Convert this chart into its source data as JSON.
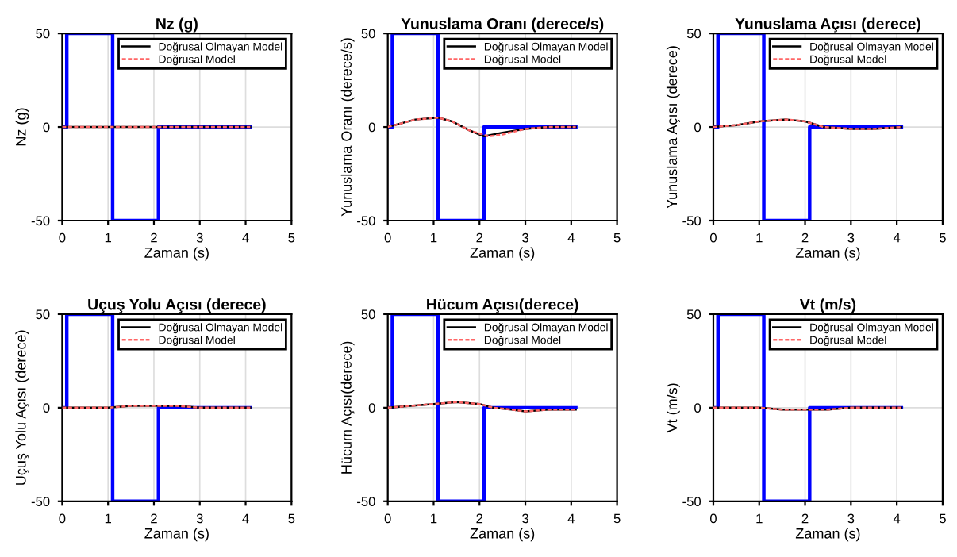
{
  "chart_data": [
    {
      "type": "line",
      "title": "Nz (g)",
      "xlabel": "Zaman (s)",
      "ylabel": "Nz (g)",
      "xlim": [
        0,
        5
      ],
      "ylim": [
        -50,
        50
      ],
      "xticks": [
        0,
        1,
        2,
        3,
        4,
        5
      ],
      "yticks": [
        -50,
        0,
        50
      ],
      "grid": true,
      "legend": "top right",
      "series": [
        {
          "name": "Doğrusal Olmayan Model",
          "color": "#000000",
          "line_style": "solid",
          "x": [
            0,
            1,
            2,
            3,
            4.1
          ],
          "values": [
            0,
            0,
            0,
            0,
            0
          ]
        },
        {
          "name": "Doğrusal Model",
          "color": "#ff6666",
          "line_style": "dashed",
          "x": [
            0,
            1,
            2,
            3,
            4.1
          ],
          "values": [
            0,
            0,
            0,
            0,
            0
          ]
        },
        {
          "color": "#0000ff",
          "line_style": "solid",
          "x": [
            0,
            0.1,
            0.1,
            1.1,
            1.1,
            2.1,
            2.1,
            4.1
          ],
          "values": [
            0,
            0,
            50,
            50,
            -50,
            -50,
            0,
            0
          ]
        }
      ]
    },
    {
      "type": "line",
      "title": "Yunuslama Oranı (derece/s)",
      "xlabel": "Zaman (s)",
      "ylabel": "Yunuslama Oranı (derece/s)",
      "xlim": [
        0,
        5
      ],
      "ylim": [
        -50,
        50
      ],
      "xticks": [
        0,
        1,
        2,
        3,
        4,
        5
      ],
      "yticks": [
        -50,
        0,
        50
      ],
      "grid": true,
      "legend": "top right",
      "series": [
        {
          "name": "Doğrusal Olmayan Model",
          "color": "#000000",
          "line_style": "solid",
          "x": [
            0,
            0.3,
            0.6,
            1.1,
            1.4,
            1.8,
            2.1,
            2.5,
            3,
            3.5,
            4.1
          ],
          "values": [
            0,
            2,
            4,
            5,
            3,
            -2,
            -5,
            -3,
            -1,
            0,
            0
          ]
        },
        {
          "name": "Doğrusal Model",
          "color": "#ff6666",
          "line_style": "dashed",
          "x": [
            0,
            0.3,
            0.6,
            1.1,
            1.4,
            1.8,
            2.2,
            2.5,
            3,
            3.5,
            4.1
          ],
          "values": [
            0,
            2,
            4,
            5,
            3,
            -2,
            -5,
            -4,
            -1,
            0,
            0
          ]
        },
        {
          "color": "#0000ff",
          "line_style": "solid",
          "x": [
            0,
            0.1,
            0.1,
            1.1,
            1.1,
            2.1,
            2.1,
            4.1
          ],
          "values": [
            0,
            0,
            50,
            50,
            -50,
            -50,
            0,
            0
          ]
        }
      ]
    },
    {
      "type": "line",
      "title": "Yunuslama Açısı (derece)",
      "xlabel": "Zaman (s)",
      "ylabel": "Yunuslama Açısı (derece)",
      "xlim": [
        0,
        5
      ],
      "ylim": [
        -50,
        50
      ],
      "xticks": [
        0,
        1,
        2,
        3,
        4,
        5
      ],
      "yticks": [
        -50,
        0,
        50
      ],
      "grid": true,
      "legend": "top right",
      "series": [
        {
          "name": "Doğrusal Olmayan Model",
          "color": "#000000",
          "line_style": "solid",
          "x": [
            0,
            0.5,
            1,
            1.6,
            2,
            2.4,
            3,
            3.5,
            4.1
          ],
          "values": [
            0,
            1,
            3,
            4,
            3,
            0,
            -1,
            -1,
            0
          ]
        },
        {
          "name": "Doğrusal Model",
          "color": "#ff6666",
          "line_style": "dashed",
          "x": [
            0,
            0.5,
            1,
            1.6,
            2,
            2.4,
            3,
            3.5,
            4.1
          ],
          "values": [
            0,
            1,
            3,
            4,
            3,
            0,
            -1,
            -1,
            0
          ]
        },
        {
          "color": "#0000ff",
          "line_style": "solid",
          "x": [
            0,
            0.1,
            0.1,
            1.1,
            1.1,
            2.1,
            2.1,
            4.1
          ],
          "values": [
            0,
            0,
            50,
            50,
            -50,
            -50,
            0,
            0
          ]
        }
      ]
    },
    {
      "type": "line",
      "title": "Uçuş Yolu Açısı (derece)",
      "xlabel": "Zaman (s)",
      "ylabel": "Uçuş Yolu Açısı (derece)",
      "xlim": [
        0,
        5
      ],
      "ylim": [
        -50,
        50
      ],
      "xticks": [
        0,
        1,
        2,
        3,
        4,
        5
      ],
      "yticks": [
        -50,
        0,
        50
      ],
      "grid": true,
      "legend": "top right",
      "series": [
        {
          "name": "Doğrusal Olmayan Model",
          "color": "#000000",
          "line_style": "solid",
          "x": [
            0,
            1,
            1.5,
            2,
            2.5,
            3,
            4.1
          ],
          "values": [
            0,
            0,
            1,
            1,
            1,
            0,
            0
          ]
        },
        {
          "name": "Doğrusal Model",
          "color": "#ff6666",
          "line_style": "dashed",
          "x": [
            0,
            1,
            1.5,
            2,
            2.5,
            3,
            4.1
          ],
          "values": [
            0,
            0,
            1,
            1,
            1,
            0,
            0
          ]
        },
        {
          "color": "#0000ff",
          "line_style": "solid",
          "x": [
            0,
            0.1,
            0.1,
            1.1,
            1.1,
            2.1,
            2.1,
            4.1
          ],
          "values": [
            0,
            0,
            50,
            50,
            -50,
            -50,
            0,
            0
          ]
        }
      ]
    },
    {
      "type": "line",
      "title": "Hücum Açısı(derece)",
      "xlabel": "Zaman (s)",
      "ylabel": "Hücum Açısı(derece)",
      "xlim": [
        0,
        5
      ],
      "ylim": [
        -50,
        50
      ],
      "xticks": [
        0,
        1,
        2,
        3,
        4,
        5
      ],
      "yticks": [
        -50,
        0,
        50
      ],
      "grid": true,
      "legend": "top right",
      "series": [
        {
          "name": "Doğrusal Olmayan Model",
          "color": "#000000",
          "line_style": "solid",
          "x": [
            0,
            0.5,
            1,
            1.5,
            2,
            2.3,
            2.7,
            3,
            3.5,
            4.1
          ],
          "values": [
            0,
            1,
            2,
            3,
            2,
            0,
            -1,
            -2,
            -1,
            -1
          ]
        },
        {
          "name": "Doğrusal Model",
          "color": "#ff6666",
          "line_style": "dashed",
          "x": [
            0,
            0.5,
            1,
            1.5,
            2,
            2.3,
            2.7,
            3,
            3.5,
            4.1
          ],
          "values": [
            0,
            1,
            2,
            3,
            2,
            0,
            -1,
            -2,
            -1,
            -1
          ]
        },
        {
          "color": "#0000ff",
          "line_style": "solid",
          "x": [
            0,
            0.1,
            0.1,
            1.1,
            1.1,
            2.1,
            2.1,
            4.1
          ],
          "values": [
            0,
            0,
            50,
            50,
            -50,
            -50,
            0,
            0
          ]
        }
      ]
    },
    {
      "type": "line",
      "title": "Vt (m/s)",
      "xlabel": "Zaman (s)",
      "ylabel": "Vt (m/s)",
      "xlim": [
        0,
        5
      ],
      "ylim": [
        -50,
        50
      ],
      "xticks": [
        0,
        1,
        2,
        3,
        4,
        5
      ],
      "yticks": [
        -50,
        0,
        50
      ],
      "grid": true,
      "legend": "top right",
      "series": [
        {
          "name": "Doğrusal Olmayan Model",
          "color": "#000000",
          "line_style": "solid",
          "x": [
            0,
            1,
            1.5,
            2,
            2.5,
            3,
            4.1
          ],
          "values": [
            0,
            0,
            -1,
            -1,
            -1,
            0,
            0
          ]
        },
        {
          "name": "Doğrusal Model",
          "color": "#ff6666",
          "line_style": "dashed",
          "x": [
            0,
            1,
            1.5,
            2,
            2.5,
            3,
            4.1
          ],
          "values": [
            0,
            0,
            -1,
            -1,
            -1,
            0,
            0
          ]
        },
        {
          "color": "#0000ff",
          "line_style": "solid",
          "x": [
            0,
            0.1,
            0.1,
            1.1,
            1.1,
            2.1,
            2.1,
            4.1
          ],
          "values": [
            0,
            0,
            50,
            50,
            -50,
            -50,
            0,
            0
          ]
        }
      ]
    }
  ]
}
